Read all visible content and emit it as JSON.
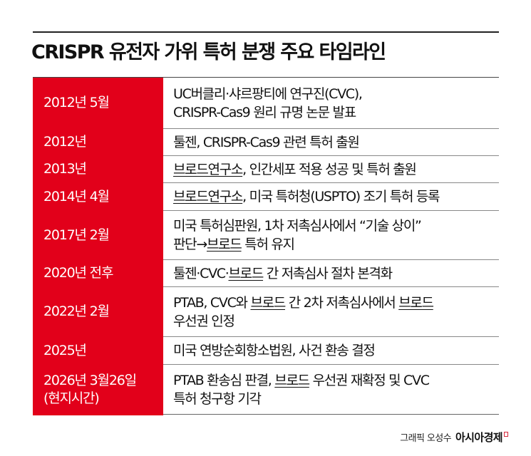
{
  "header": {
    "title": "CRISPR 유전자 가위 특허 분쟁 주요 타임라인"
  },
  "colors": {
    "date_column_bg": "#e2001a",
    "date_text": "#ffffff",
    "body_text": "#111111",
    "rule": "#222222",
    "brand_mark": "#d6263a"
  },
  "timeline": {
    "rows": [
      {
        "date": "2012년 5월",
        "height": 72,
        "lines": [
          [
            {
              "text": "UC버클리·샤르팡티에 연구진(CVC),",
              "u": false
            }
          ],
          [
            {
              "text": "CRISPR-Cas9 원리 규명 논문 발표",
              "u": false
            }
          ]
        ]
      },
      {
        "date": "2012년",
        "height": 38,
        "lines": [
          [
            {
              "text": "툴젠, CRISPR-Cas9 관련 특허 출원",
              "u": false
            }
          ]
        ]
      },
      {
        "date": "2013년",
        "height": 38,
        "lines": [
          [
            {
              "text": "브로드연구소",
              "u": true
            },
            {
              "text": ", 인간세포 적용 성공 및 특허 출원",
              "u": false
            }
          ]
        ]
      },
      {
        "date": "2014년 4월",
        "height": 39,
        "lines": [
          [
            {
              "text": "브로드연구소",
              "u": true
            },
            {
              "text": ", 미국 특허청(USPTO) 조기 특허 등록",
              "u": false
            }
          ]
        ]
      },
      {
        "date": "2017년 2월",
        "height": 69,
        "lines": [
          [
            {
              "text": "미국 특허심판원, 1차 저촉심사에서 “기술 상이”",
              "u": false
            }
          ],
          [
            {
              "text": "판단→",
              "u": false
            },
            {
              "text": "브로드",
              "u": true
            },
            {
              "text": " 특허 유지",
              "u": false
            }
          ]
        ]
      },
      {
        "date": "2020년 전후",
        "height": 38,
        "lines": [
          [
            {
              "text": "툴젠·CVC·",
              "u": false
            },
            {
              "text": "브로드",
              "u": true
            },
            {
              "text": " 간 저촉심사 절차 본격화",
              "u": false
            }
          ]
        ]
      },
      {
        "date": "2022년 2월",
        "height": 70,
        "lines": [
          [
            {
              "text": "PTAB, CVC와 ",
              "u": false
            },
            {
              "text": "브로드",
              "u": true
            },
            {
              "text": " 간 2차 저촉심사에서 ",
              "u": false
            },
            {
              "text": "브로드",
              "u": true
            }
          ],
          [
            {
              "text": "우선권 인정",
              "u": false
            }
          ]
        ]
      },
      {
        "date": "2025년",
        "height": 39,
        "lines": [
          [
            {
              "text": "미국 연방순회항소법원, 사건 환송 결정",
              "u": false
            }
          ]
        ]
      },
      {
        "date": "2026년 3월26일\n(현지시간)",
        "height": 70,
        "lines": [
          [
            {
              "text": "PTAB 환송심 판결, ",
              "u": false
            },
            {
              "text": "브로드",
              "u": true
            },
            {
              "text": " 우선권 재확정 및 CVC",
              "u": false
            }
          ],
          [
            {
              "text": "특허 청구항 기각",
              "u": false
            }
          ]
        ]
      }
    ]
  },
  "footer": {
    "artist_credit": "그래픽 오성수",
    "brand": "아시아경제",
    "brand_icon": "asiae-logo-mark-icon"
  }
}
